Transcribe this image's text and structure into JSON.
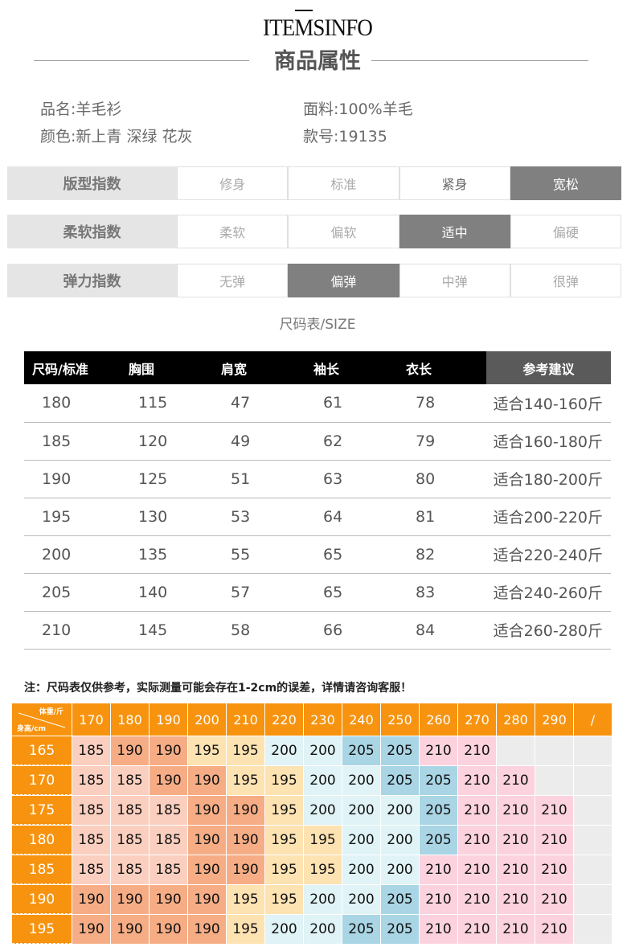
{
  "header": {
    "brand": "ITEMSINFO",
    "title": "商品属性"
  },
  "info": {
    "name": "品名:羊毛衫",
    "material": "面料:100%羊毛",
    "colors": "颜色:新上青 深绿 花灰",
    "style_no": "款号:19135"
  },
  "indices": [
    {
      "label": "版型指数",
      "options": [
        "修身",
        "标准",
        "紧身",
        "宽松"
      ],
      "selected": 3
    },
    {
      "label": "柔软指数",
      "options": [
        "柔软",
        "偏软",
        "适中",
        "偏硬"
      ],
      "selected": 2
    },
    {
      "label": "弹力指数",
      "options": [
        "无弹",
        "偏弹",
        "中弹",
        "很弹"
      ],
      "selected": 1
    }
  ],
  "size_caption": "尺码表/SIZE",
  "size_table": {
    "headers": [
      "尺码/标准",
      "胸围",
      "肩宽",
      "袖长",
      "衣长",
      "参考建议"
    ],
    "rows": [
      [
        "180",
        "115",
        "47",
        "61",
        "78",
        "适合140-160斤"
      ],
      [
        "185",
        "120",
        "49",
        "62",
        "79",
        "适合160-180斤"
      ],
      [
        "190",
        "125",
        "51",
        "63",
        "80",
        "适合180-200斤"
      ],
      [
        "195",
        "130",
        "53",
        "64",
        "81",
        "适合200-220斤"
      ],
      [
        "200",
        "135",
        "55",
        "65",
        "82",
        "适合220-240斤"
      ],
      [
        "205",
        "140",
        "57",
        "65",
        "83",
        "适合240-260斤"
      ],
      [
        "210",
        "145",
        "58",
        "66",
        "84",
        "适合260-280斤"
      ]
    ]
  },
  "note": "注：尺码表仅供参考，实际测量可能会存在1-2cm的误差，详情请咨询客服！",
  "grid": {
    "corner_weight": "体重/斤",
    "corner_height": "身高/cm",
    "weights": [
      "170",
      "180",
      "190",
      "200",
      "210",
      "220",
      "230",
      "240",
      "250",
      "260",
      "270",
      "280",
      "290",
      "/"
    ],
    "rows": [
      {
        "height": "165",
        "values": [
          "185",
          "190",
          "190",
          "195",
          "195",
          "200",
          "200",
          "205",
          "205",
          "210",
          "210",
          "",
          "",
          ""
        ]
      },
      {
        "height": "170",
        "values": [
          "185",
          "185",
          "190",
          "190",
          "195",
          "195",
          "200",
          "200",
          "205",
          "205",
          "210",
          "210",
          "",
          ""
        ]
      },
      {
        "height": "175",
        "values": [
          "185",
          "185",
          "185",
          "190",
          "190",
          "195",
          "200",
          "200",
          "200",
          "205",
          "210",
          "210",
          "210",
          ""
        ]
      },
      {
        "height": "180",
        "values": [
          "185",
          "185",
          "185",
          "190",
          "190",
          "195",
          "195",
          "200",
          "200",
          "205",
          "210",
          "210",
          "210",
          ""
        ]
      },
      {
        "height": "185",
        "values": [
          "185",
          "185",
          "185",
          "190",
          "190",
          "195",
          "195",
          "200",
          "200",
          "210",
          "210",
          "210",
          "210",
          ""
        ]
      },
      {
        "height": "190",
        "values": [
          "190",
          "190",
          "190",
          "190",
          "195",
          "195",
          "200",
          "200",
          "205",
          "210",
          "210",
          "210",
          "210",
          ""
        ]
      },
      {
        "height": "195",
        "values": [
          "190",
          "190",
          "190",
          "190",
          "195",
          "200",
          "200",
          "205",
          "205",
          "210",
          "210",
          "210",
          "210",
          ""
        ]
      }
    ],
    "colors": {
      "185": "#fbcfbf",
      "190": "#f6ad85",
      "195": "#fde2b2",
      "200": "#e0f3f6",
      "205": "#a9d5e5",
      "210": "#fbd2de",
      "empty": "#ececec",
      "header": "#f7930e"
    }
  }
}
